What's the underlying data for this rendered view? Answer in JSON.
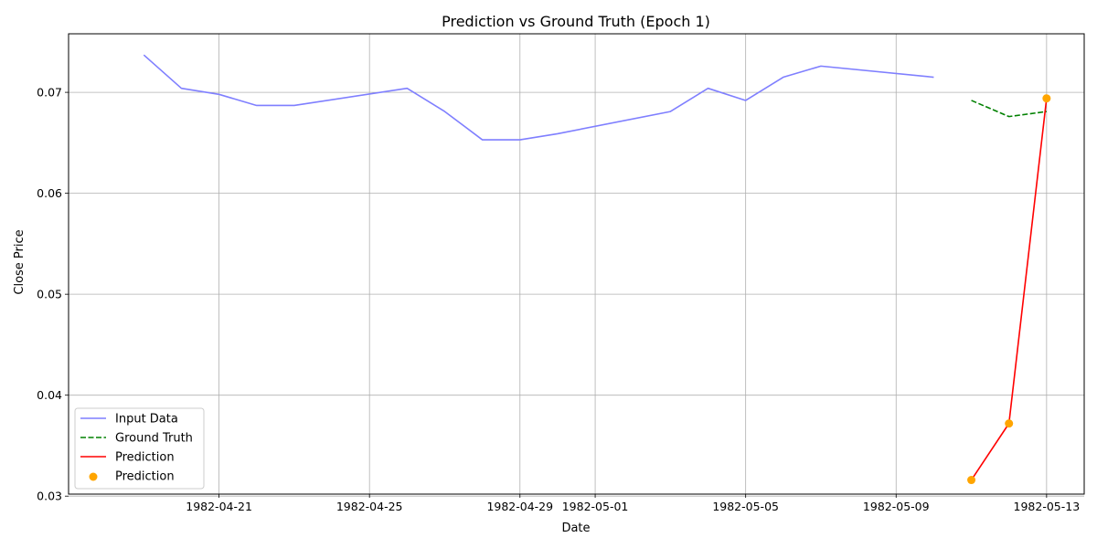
{
  "chart_data": {
    "type": "line",
    "title": "Prediction vs Ground Truth (Epoch 1)",
    "xlabel": "Date",
    "ylabel": "Close Price",
    "x_type": "date",
    "xlim": [
      "1982-04-17",
      "1982-05-14"
    ],
    "ylim": [
      0.0302,
      0.0758
    ],
    "x_ticks": [
      "1982-04-21",
      "1982-04-25",
      "1982-04-29",
      "1982-05-01",
      "1982-05-05",
      "1982-05-09",
      "1982-05-13"
    ],
    "y_ticks": [
      0.03,
      0.04,
      0.05,
      0.06,
      0.07
    ],
    "y_tick_labels": [
      "0.03",
      "0.04",
      "0.05",
      "0.06",
      "0.07"
    ],
    "grid": true,
    "legend_position": "lower-left",
    "series": [
      {
        "name": "Input Data",
        "style": "line",
        "color": "#7f7fff",
        "dash": "solid",
        "x": [
          "1982-04-19",
          "1982-04-20",
          "1982-04-21",
          "1982-04-22",
          "1982-04-23",
          "1982-04-26",
          "1982-04-27",
          "1982-04-28",
          "1982-04-29",
          "1982-04-30",
          "1982-05-03",
          "1982-05-04",
          "1982-05-05",
          "1982-05-06",
          "1982-05-07",
          "1982-05-10"
        ],
        "values": [
          0.0737,
          0.0704,
          0.0698,
          0.0687,
          0.0687,
          0.0704,
          0.0681,
          0.0653,
          0.0653,
          0.0659,
          0.0681,
          0.0704,
          0.0692,
          0.0715,
          0.0726,
          0.0715
        ]
      },
      {
        "name": "Ground Truth",
        "style": "line",
        "color": "#008000",
        "dash": "dashed",
        "x": [
          "1982-05-11",
          "1982-05-12",
          "1982-05-13"
        ],
        "values": [
          0.0692,
          0.0676,
          0.0681
        ]
      },
      {
        "name": "Prediction",
        "style": "line",
        "color": "#ff0000",
        "dash": "solid",
        "x": [
          "1982-05-11",
          "1982-05-12",
          "1982-05-13"
        ],
        "values": [
          0.0316,
          0.0372,
          0.0694
        ]
      },
      {
        "name": "Prediction",
        "style": "scatter",
        "color": "#ffa500",
        "x": [
          "1982-05-11",
          "1982-05-12",
          "1982-05-13"
        ],
        "values": [
          0.0316,
          0.0372,
          0.0694
        ]
      }
    ]
  }
}
